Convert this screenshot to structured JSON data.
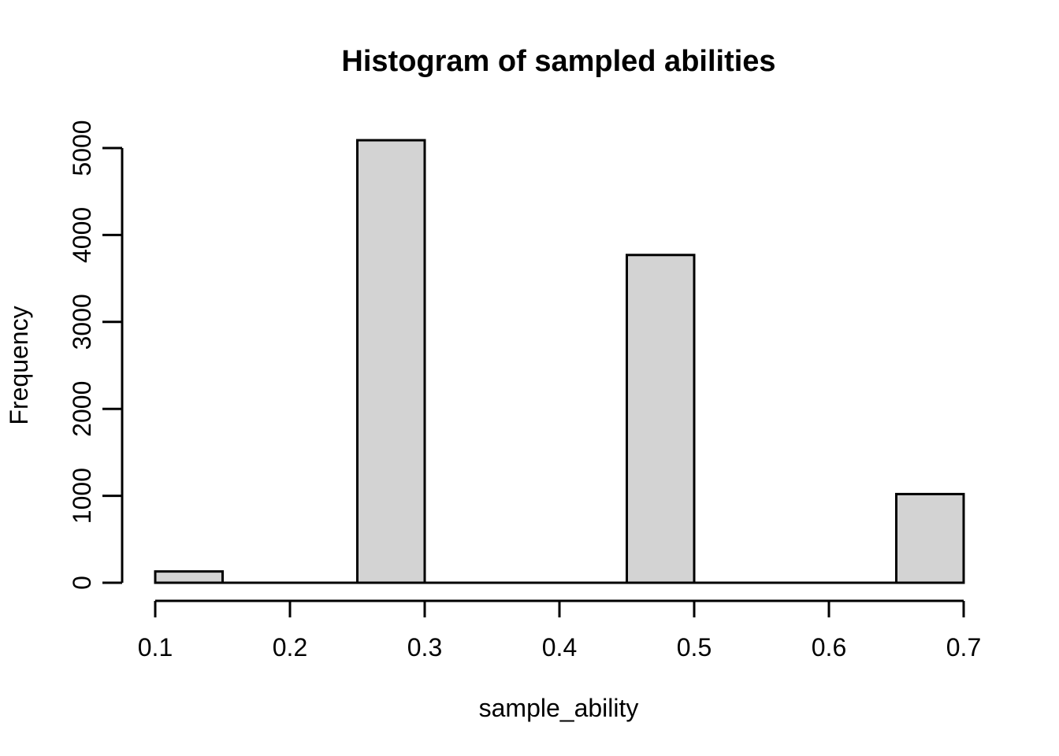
{
  "chart_data": {
    "type": "bar",
    "subtype": "histogram",
    "title": "Histogram of sampled abilities",
    "xlabel": "sample_ability",
    "ylabel": "Frequency",
    "bin_edges": [
      0.1,
      0.15,
      0.2,
      0.25,
      0.3,
      0.35,
      0.4,
      0.45,
      0.5,
      0.55,
      0.6,
      0.65,
      0.7
    ],
    "counts": [
      130,
      0,
      0,
      5090,
      0,
      0,
      0,
      3770,
      0,
      0,
      0,
      1020
    ],
    "x_ticks": [
      0.1,
      0.2,
      0.3,
      0.4,
      0.5,
      0.6,
      0.7
    ],
    "y_ticks": [
      0,
      1000,
      2000,
      3000,
      4000,
      5000
    ],
    "xlim": [
      0.1,
      0.7
    ],
    "ylim": [
      0,
      5090
    ],
    "grid": false,
    "legend": "none",
    "colors": {
      "bar_fill": "#d3d3d3",
      "bar_stroke": "#000000",
      "axis": "#000000",
      "background": "#ffffff",
      "text": "#000000"
    }
  }
}
